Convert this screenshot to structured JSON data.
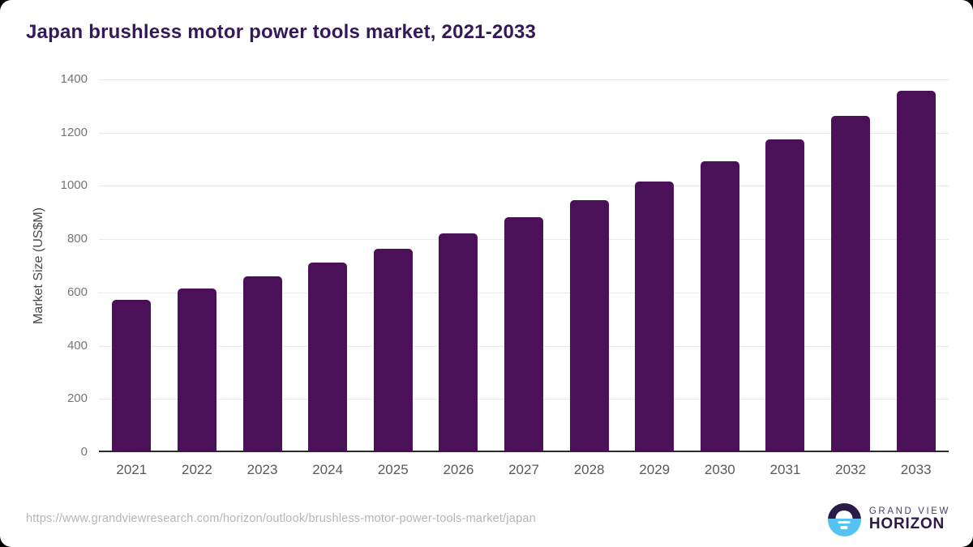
{
  "title": "Japan brushless motor power tools market, 2021-2033",
  "chart_data": {
    "type": "bar",
    "categories": [
      "2021",
      "2022",
      "2023",
      "2024",
      "2025",
      "2026",
      "2027",
      "2028",
      "2029",
      "2030",
      "2031",
      "2032",
      "2033"
    ],
    "values": [
      573,
      616,
      661,
      712,
      765,
      821,
      882,
      947,
      1018,
      1092,
      1174,
      1263,
      1356
    ],
    "title": "Japan brushless motor power tools market, 2021-2033",
    "xlabel": "",
    "ylabel": "Market Size (US$M)",
    "ylim": [
      0,
      1400
    ],
    "ytick_step": 200,
    "grid": "horizontal",
    "legend": "none",
    "bar_color": "#4A1158"
  },
  "colors": {
    "title_text": "#33195A",
    "bar": "#4A1158",
    "logo_top_half": "#2B1947",
    "logo_bottom_half": "#56C2F0"
  },
  "footer": {
    "source_url": "https://www.grandviewresearch.com/horizon/outlook/brushless-motor-power-tools-market/japan",
    "logo": {
      "line1": "GRAND VIEW",
      "line2": "HORIZON"
    }
  }
}
